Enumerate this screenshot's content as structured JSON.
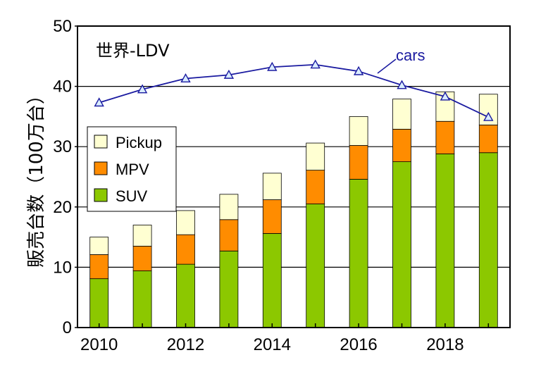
{
  "chart_data": {
    "type": "bar",
    "stacked": true,
    "title": "世界-LDV",
    "ylabel": "販売台数（100万台）",
    "xlabel": "",
    "ylim": [
      0,
      50
    ],
    "yticks": [
      0,
      10,
      20,
      30,
      40,
      50
    ],
    "categories": [
      2010,
      2011,
      2012,
      2013,
      2014,
      2015,
      2016,
      2017,
      2018,
      2019
    ],
    "xtick_labels": [
      "2010",
      "2012",
      "2014",
      "2016",
      "2018"
    ],
    "grid": true,
    "legend_position": "left",
    "series": [
      {
        "name": "SUV",
        "color": "#8cc800",
        "values": [
          8.1,
          9.4,
          10.5,
          12.7,
          15.6,
          20.5,
          24.6,
          27.5,
          28.8,
          29.0
        ]
      },
      {
        "name": "MPV",
        "color": "#ff8c00",
        "values": [
          4.0,
          4.1,
          4.9,
          5.2,
          5.6,
          5.6,
          5.6,
          5.4,
          5.4,
          4.6
        ]
      },
      {
        "name": "Pickup",
        "color": "#ffffd2",
        "values": [
          2.9,
          3.5,
          4.0,
          4.2,
          4.4,
          4.5,
          4.8,
          5.0,
          4.9,
          5.1
        ]
      }
    ],
    "line_series": {
      "name": "cars",
      "color": "#1a1aa0",
      "values": [
        37.3,
        39.5,
        41.3,
        41.9,
        43.2,
        43.6,
        42.5,
        40.2,
        38.3,
        34.9
      ]
    }
  }
}
